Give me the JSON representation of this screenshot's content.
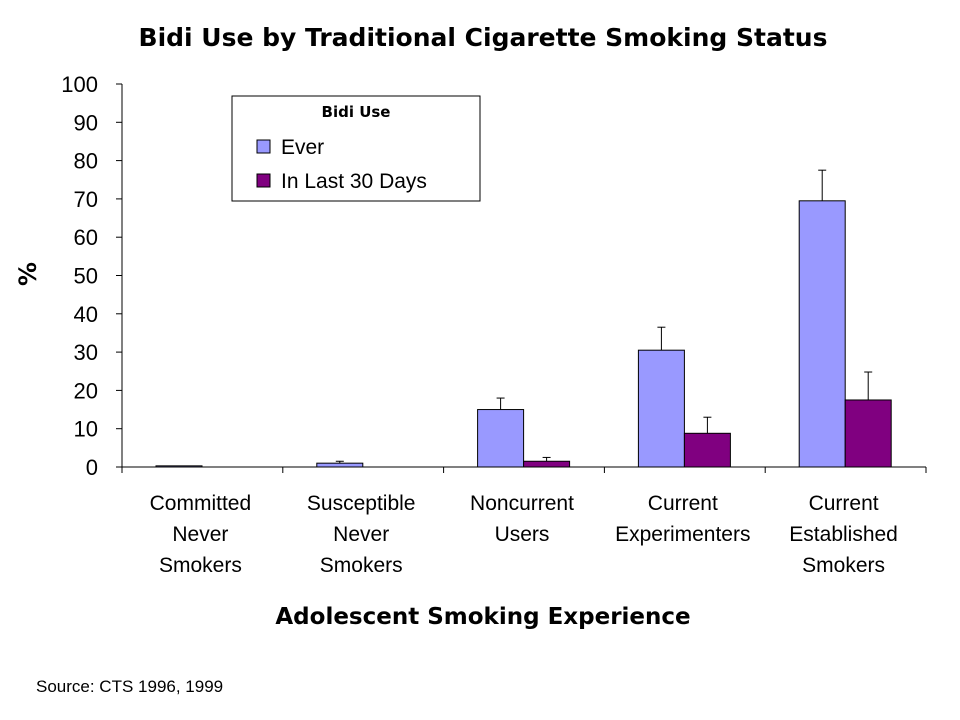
{
  "chart_data": {
    "type": "bar",
    "title": "Bidi Use by Traditional Cigarette Smoking Status",
    "xlabel": "Adolescent Smoking Experience",
    "ylabel": "%",
    "ylim": [
      0,
      100
    ],
    "yticks": [
      "0",
      "10",
      "20",
      "30",
      "40",
      "50",
      "60",
      "70",
      "80",
      "90",
      "100"
    ],
    "grid": false,
    "legend_title": "Bidi Use",
    "legend_position": "top-left",
    "categories": [
      [
        "Committed",
        "Never",
        "Smokers"
      ],
      [
        "Susceptible",
        "Never",
        "Smokers"
      ],
      [
        "Noncurrent",
        "Users"
      ],
      [
        "Current",
        "Experimenters"
      ],
      [
        "Current",
        "Established",
        "Smokers"
      ]
    ],
    "series": [
      {
        "name": "Ever",
        "color": "#9999ff",
        "values": [
          0.3,
          1.0,
          15.0,
          30.5,
          69.5
        ],
        "error_upper": [
          0.3,
          1.5,
          18.0,
          36.5,
          77.5
        ]
      },
      {
        "name": "In Last 30 Days",
        "color": "#800080",
        "values": [
          0,
          0,
          1.5,
          8.8,
          17.5
        ],
        "error_upper": [
          0,
          0,
          2.5,
          13.0,
          24.8
        ]
      }
    ]
  },
  "source_note": "Source:  CTS 1996, 1999"
}
